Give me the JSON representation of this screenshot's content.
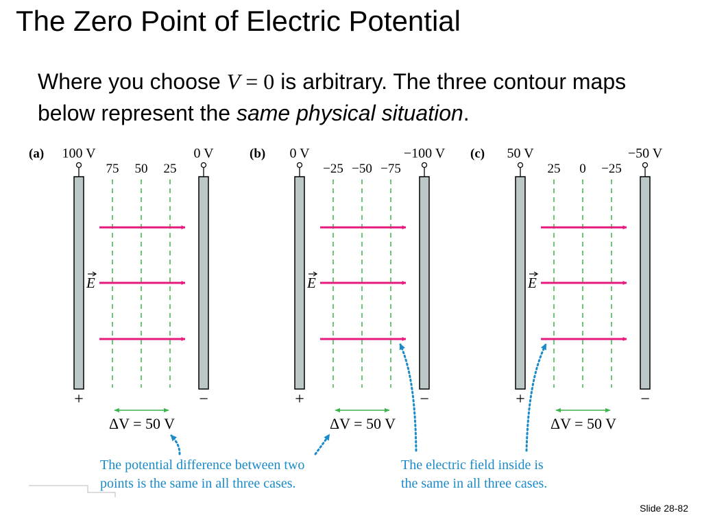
{
  "slide": {
    "title": "The Zero Point of Electric Potential",
    "intro": {
      "before_math": "Where you choose ",
      "math_var": "V",
      "math_rest": " = 0",
      "after_math": " is arbitrary. The three contour maps below represent the ",
      "emphasis": "same physical situation",
      "end": "."
    },
    "slide_number": "Slide 28-82"
  },
  "figure": {
    "field_label": "E",
    "delta_v_label": "ΔV = 50 V",
    "plus_sign": "+",
    "minus_sign": "−",
    "colors": {
      "plate_fill": "#bcc7c7",
      "field_arrow": "#e6197d",
      "contour": "#3cb44b",
      "callout": "#1a8ac8"
    },
    "panels": [
      {
        "id": "a",
        "label": "(a)",
        "left_plate_potential": "100 V",
        "right_plate_potential": "0 V",
        "contours": [
          "75",
          "50",
          "25"
        ]
      },
      {
        "id": "b",
        "label": "(b)",
        "left_plate_potential": "0 V",
        "right_plate_potential": "−100 V",
        "contours": [
          "−25",
          "−50",
          "−75"
        ]
      },
      {
        "id": "c",
        "label": "(c)",
        "left_plate_potential": "50 V",
        "right_plate_potential": "−50 V",
        "contours": [
          "25",
          "0",
          "−25"
        ]
      }
    ],
    "callouts": {
      "potential_difference": {
        "line1": "The potential difference between two",
        "line2": "points is the same in all three cases."
      },
      "electric_field": {
        "line1": "The electric field inside is",
        "line2": "the same in all three cases."
      }
    }
  }
}
